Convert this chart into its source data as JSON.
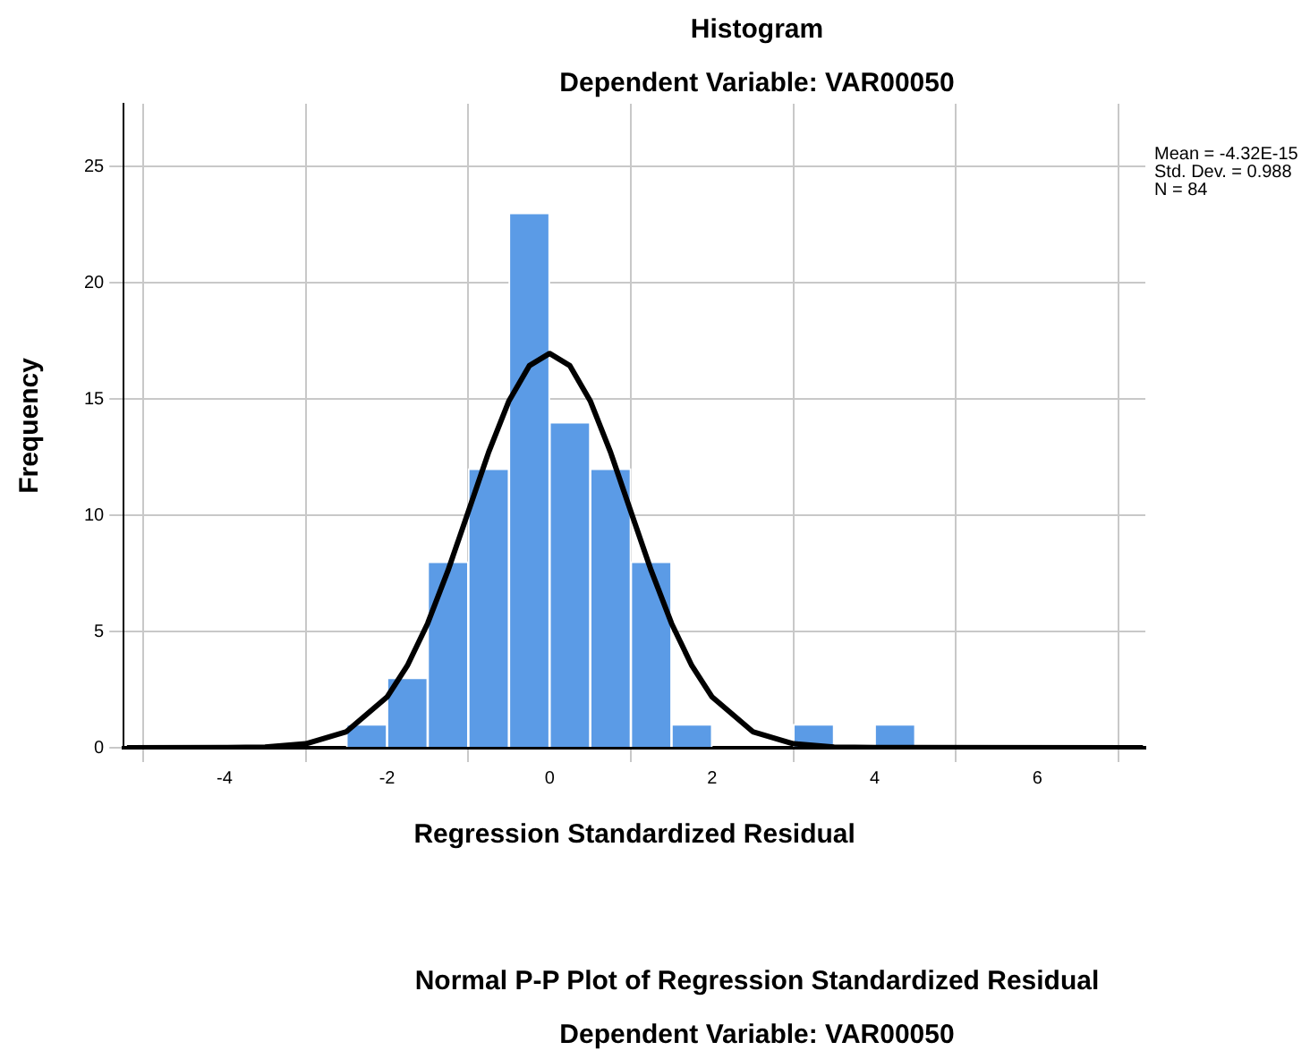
{
  "chart_data": {
    "type": "histogram",
    "title": "Histogram",
    "subtitle": "Dependent Variable: VAR00050",
    "xlabel": "Regression Standardized Residual",
    "ylabel": "Frequency",
    "bins": [
      -2.5,
      -2,
      -1.5,
      -1,
      -0.5,
      0,
      0.5,
      1,
      1.5,
      2,
      2.5,
      3,
      3.5,
      4,
      4.5
    ],
    "values": [
      1,
      3,
      8,
      12,
      23,
      14,
      12,
      8,
      1,
      0,
      0,
      1,
      0,
      1
    ],
    "color": "#5b9be6",
    "series": [
      {
        "type": "line",
        "color": "#000000",
        "x": [
          -5.2,
          -4,
          -3.5,
          -3,
          -2.5,
          -2,
          -1.75,
          -1.5,
          -1.25,
          -1,
          -0.75,
          -0.5,
          -0.25,
          0,
          0.25,
          0.5,
          0.75,
          1,
          1.25,
          1.5,
          1.75,
          2,
          2.5,
          3,
          3.5,
          4,
          7.3
        ],
        "values": [
          0,
          0.01,
          0.03,
          0.17,
          0.69,
          2.18,
          3.53,
          5.35,
          7.62,
          10.16,
          12.71,
          14.92,
          16.43,
          16.96,
          16.43,
          14.92,
          12.71,
          10.16,
          7.62,
          5.35,
          3.53,
          2.18,
          0.69,
          0.17,
          0.03,
          0.01,
          0
        ]
      }
    ],
    "xlim": [
      -5.24,
      7.33
    ],
    "xticks": [
      -4,
      -2,
      0,
      2,
      4,
      6
    ],
    "ylim": [
      0,
      27.7
    ],
    "yticks": [
      0,
      5,
      10,
      15,
      20,
      25
    ],
    "grid": true,
    "marker": "none",
    "annotations": [
      "Mean = -4.32E-15",
      "Std. Dev. = 0.988",
      "N = 84",
      "Normal P-P Plot of Regression Standardized Residual",
      "Dependent Variable: VAR00050"
    ]
  }
}
